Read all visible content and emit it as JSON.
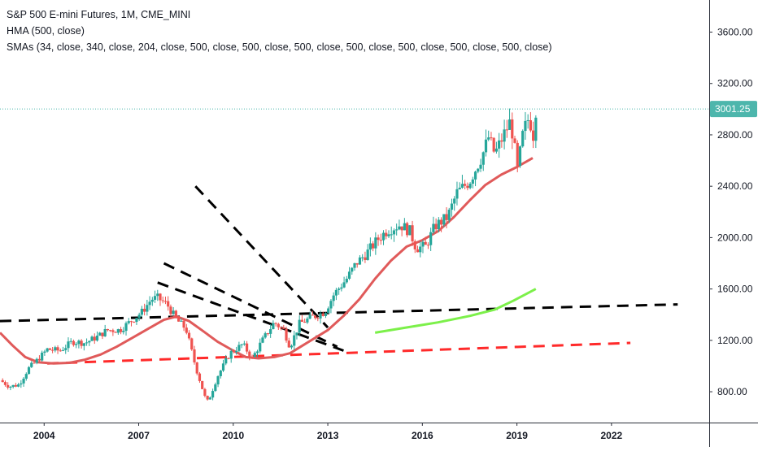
{
  "chart_data": {
    "type": "candlestick",
    "title": "S&P 500 E-mini Futures, 1M, CME_MINI",
    "indicators": [
      "HMA (500, close)",
      "SMAs (34, close, 340, close, 204, close, 500, close, 500, close, 500, close, 500, close, 500, close, 500, close, 500, close)"
    ],
    "last_price": 3001.25,
    "last_price_label": "3001.25",
    "y_ticks": [
      800,
      1200,
      1600,
      2000,
      2400,
      2800,
      3200,
      3600
    ],
    "y_tick_labels": [
      "800.00",
      "1200.00",
      "1600.00",
      "2000.00",
      "2400.00",
      "2800.00",
      "3200.00",
      "3600.00"
    ],
    "x_ticks": [
      2004,
      2007,
      2010,
      2013,
      2016,
      2019,
      2022
    ],
    "x_tick_labels": [
      "2004",
      "2007",
      "2010",
      "2013",
      "2016",
      "2019",
      "2022"
    ],
    "x_range": [
      2002.6,
      2025.1
    ],
    "y_range": [
      560,
      3850
    ],
    "grid": false,
    "colors": {
      "up": "#26a69a",
      "down": "#ef5350",
      "hma": "#e05a5a",
      "sma_green": "#7cf04a",
      "trend_black": "#000000",
      "trend_red": "#ff2a2a",
      "price_line": "#4db6ac",
      "axis_text": "#131722"
    },
    "price_path": [
      [
        2002.6,
        890
      ],
      [
        2002.9,
        840
      ],
      [
        2003.2,
        855
      ],
      [
        2003.5,
        980
      ],
      [
        2003.8,
        1050
      ],
      [
        2004.1,
        1130
      ],
      [
        2004.5,
        1120
      ],
      [
        2004.9,
        1190
      ],
      [
        2005.3,
        1180
      ],
      [
        2005.7,
        1230
      ],
      [
        2006.0,
        1280
      ],
      [
        2006.4,
        1280
      ],
      [
        2006.8,
        1360
      ],
      [
        2007.1,
        1420
      ],
      [
        2007.4,
        1520
      ],
      [
        2007.6,
        1530
      ],
      [
        2007.9,
        1480
      ],
      [
        2008.2,
        1360
      ],
      [
        2008.5,
        1290
      ],
      [
        2008.8,
        1000
      ],
      [
        2009.1,
        760
      ],
      [
        2009.2,
        720
      ],
      [
        2009.5,
        920
      ],
      [
        2009.9,
        1100
      ],
      [
        2010.3,
        1170
      ],
      [
        2010.6,
        1060
      ],
      [
        2010.9,
        1190
      ],
      [
        2011.3,
        1340
      ],
      [
        2011.6,
        1280
      ],
      [
        2011.8,
        1150
      ],
      [
        2012.1,
        1330
      ],
      [
        2012.5,
        1380
      ],
      [
        2012.9,
        1420
      ],
      [
        2013.2,
        1560
      ],
      [
        2013.6,
        1680
      ],
      [
        2013.9,
        1800
      ],
      [
        2014.2,
        1870
      ],
      [
        2014.6,
        1990
      ],
      [
        2014.9,
        2060
      ],
      [
        2015.3,
        2100
      ],
      [
        2015.6,
        2050
      ],
      [
        2015.8,
        1920
      ],
      [
        2016.1,
        1930
      ],
      [
        2016.4,
        2090
      ],
      [
        2016.8,
        2160
      ],
      [
        2017.1,
        2350
      ],
      [
        2017.5,
        2440
      ],
      [
        2017.9,
        2640
      ],
      [
        2018.1,
        2780
      ],
      [
        2018.3,
        2650
      ],
      [
        2018.6,
        2810
      ],
      [
        2018.8,
        2910
      ],
      [
        2018.95,
        2650
      ],
      [
        2019.0,
        2500
      ],
      [
        2019.2,
        2820
      ],
      [
        2019.4,
        2950
      ],
      [
        2019.5,
        2760
      ],
      [
        2019.6,
        3001
      ]
    ],
    "hma": [
      [
        2002.6,
        1260
      ],
      [
        2003.0,
        1160
      ],
      [
        2003.4,
        1070
      ],
      [
        2003.8,
        1030
      ],
      [
        2004.3,
        1020
      ],
      [
        2004.8,
        1025
      ],
      [
        2005.3,
        1050
      ],
      [
        2005.8,
        1090
      ],
      [
        2006.3,
        1150
      ],
      [
        2006.8,
        1220
      ],
      [
        2007.3,
        1290
      ],
      [
        2007.8,
        1360
      ],
      [
        2008.2,
        1385
      ],
      [
        2008.6,
        1350
      ],
      [
        2009.0,
        1280
      ],
      [
        2009.5,
        1190
      ],
      [
        2010.0,
        1120
      ],
      [
        2010.4,
        1070
      ],
      [
        2010.8,
        1060
      ],
      [
        2011.3,
        1070
      ],
      [
        2011.8,
        1100
      ],
      [
        2012.2,
        1160
      ],
      [
        2012.6,
        1220
      ],
      [
        2013.0,
        1280
      ],
      [
        2013.5,
        1390
      ],
      [
        2014.0,
        1520
      ],
      [
        2014.5,
        1680
      ],
      [
        2015.0,
        1820
      ],
      [
        2015.5,
        1930
      ],
      [
        2016.0,
        1980
      ],
      [
        2016.5,
        2050
      ],
      [
        2017.0,
        2160
      ],
      [
        2017.5,
        2290
      ],
      [
        2018.0,
        2410
      ],
      [
        2018.5,
        2490
      ],
      [
        2019.0,
        2550
      ],
      [
        2019.5,
        2620
      ]
    ],
    "sma_green": [
      [
        2014.5,
        1260
      ],
      [
        2015.5,
        1300
      ],
      [
        2016.5,
        1340
      ],
      [
        2017.5,
        1390
      ],
      [
        2018.3,
        1440
      ],
      [
        2018.9,
        1510
      ],
      [
        2019.6,
        1600
      ]
    ],
    "trend_lines": [
      {
        "color": "black",
        "points": [
          [
            2002.6,
            1350
          ],
          [
            2024.1,
            1480
          ]
        ]
      },
      {
        "color": "red",
        "points": [
          [
            2004.1,
            1020
          ],
          [
            2022.6,
            1180
          ]
        ]
      },
      {
        "color": "black",
        "points": [
          [
            2008.8,
            2400
          ],
          [
            2013.0,
            1300
          ]
        ]
      },
      {
        "color": "black",
        "points": [
          [
            2007.8,
            1800
          ],
          [
            2013.3,
            1150
          ]
        ]
      },
      {
        "color": "black",
        "points": [
          [
            2007.6,
            1650
          ],
          [
            2013.5,
            1120
          ]
        ]
      }
    ]
  }
}
